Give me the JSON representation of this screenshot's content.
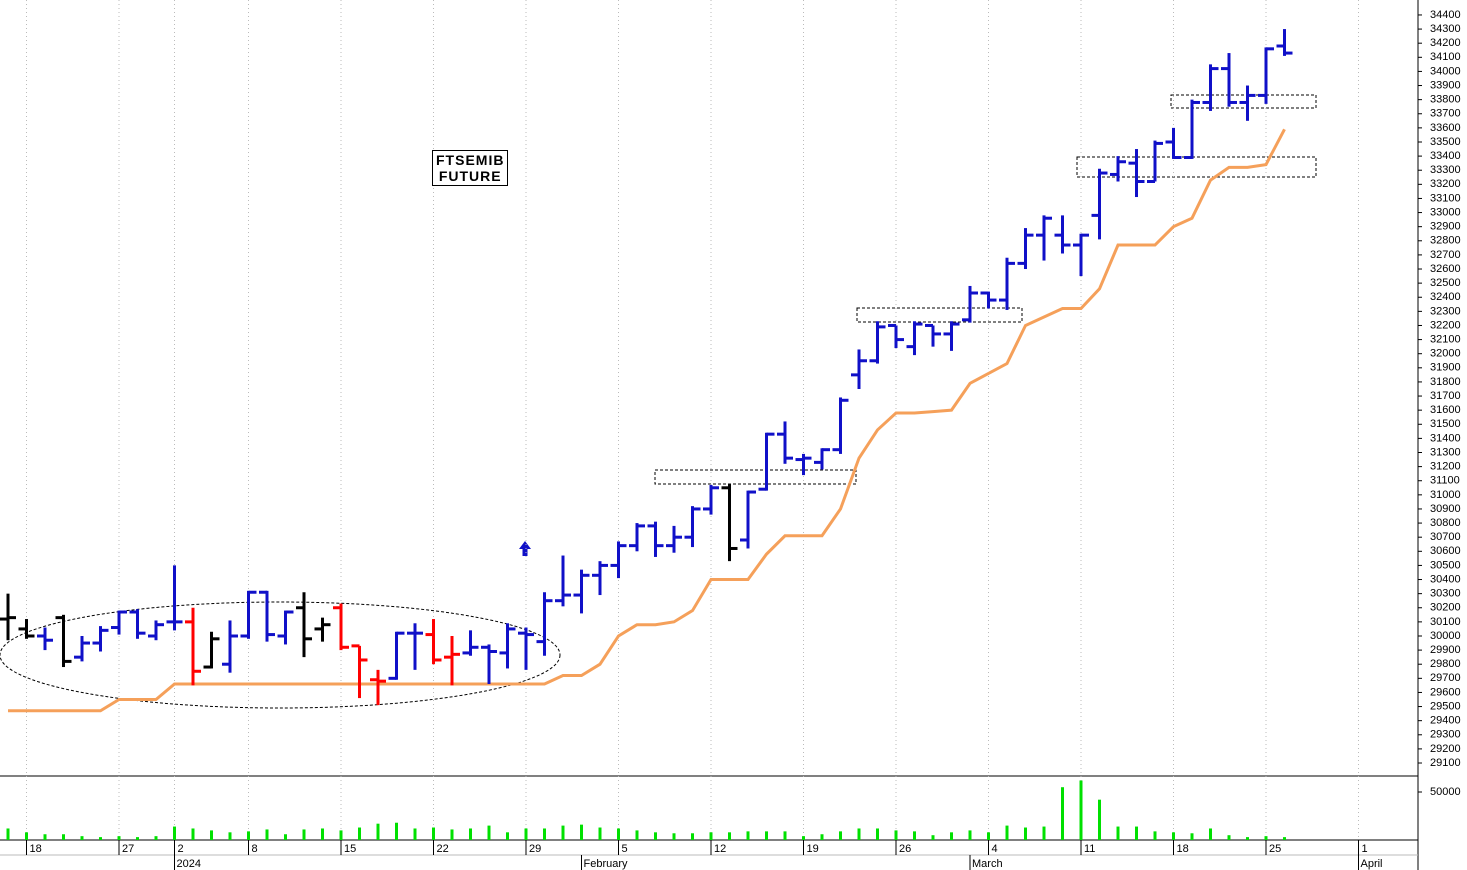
{
  "chart_data": {
    "type": "ohlc",
    "title": "FTSEMIB FUTURE",
    "categories": [
      null,
      "18",
      null,
      null,
      null,
      null,
      "27",
      null,
      null,
      "2",
      null,
      null,
      null,
      "8",
      null,
      null,
      null,
      null,
      "15",
      null,
      null,
      null,
      null,
      "22",
      null,
      null,
      null,
      null,
      "29",
      null,
      null,
      null,
      null,
      "5",
      null,
      null,
      null,
      null,
      "12",
      null,
      null,
      null,
      null,
      "19",
      null,
      null,
      null,
      null,
      "26",
      null,
      null,
      null,
      null,
      "4",
      null,
      null,
      null,
      null,
      "11",
      null,
      null,
      null,
      null,
      "18",
      null,
      null,
      null,
      null,
      "25",
      null,
      null,
      null,
      null,
      "1"
    ],
    "periods": [
      null,
      null,
      null,
      null,
      null,
      null,
      null,
      null,
      null,
      "2024",
      null,
      null,
      null,
      null,
      null,
      null,
      null,
      null,
      null,
      null,
      null,
      null,
      null,
      null,
      null,
      null,
      null,
      null,
      null,
      null,
      null,
      "February",
      null,
      null,
      null,
      null,
      null,
      null,
      null,
      null,
      null,
      null,
      null,
      null,
      null,
      null,
      null,
      null,
      null,
      null,
      null,
      null,
      "March",
      null,
      null,
      null,
      null,
      null,
      null,
      null,
      null,
      null,
      null,
      null,
      null,
      null,
      null,
      null,
      null,
      null,
      null,
      null,
      null,
      "April"
    ],
    "open": [
      30120,
      30050,
      30000,
      30130,
      29850,
      29950,
      30060,
      30170,
      30000,
      30100,
      30100,
      29780,
      29800,
      30000,
      30310,
      30000,
      30200,
      30050,
      30200,
      29930,
      29690,
      29700,
      30020,
      30010,
      29850,
      29880,
      29920,
      29880,
      30020,
      29960,
      30250,
      30290,
      30430,
      30500,
      30640,
      30780,
      30640,
      30700,
      30900,
      31050,
      30680,
      31040,
      31430,
      31250,
      31230,
      31320,
      31850,
      31950,
      32200,
      32050,
      32200,
      32140,
      32240,
      32430,
      32380,
      32640,
      32840,
      32840,
      32770,
      32980,
      33270,
      33350,
      33220,
      33500,
      33390,
      33780,
      34020,
      33780,
      33830,
      34180,
      null,
      null,
      null,
      null
    ],
    "high": [
      30300,
      30120,
      30060,
      30150,
      30000,
      30070,
      30180,
      30190,
      30110,
      30500,
      30200,
      30030,
      30110,
      30320,
      30320,
      30180,
      30310,
      30130,
      30230,
      29930,
      29760,
      30030,
      30090,
      30120,
      30000,
      30040,
      29940,
      30090,
      30060,
      30310,
      30570,
      30470,
      30530,
      30670,
      30800,
      30810,
      30780,
      30920,
      31070,
      31080,
      31030,
      31440,
      31520,
      31290,
      31330,
      31690,
      32030,
      32230,
      32200,
      32230,
      32200,
      32230,
      32480,
      32440,
      32680,
      32890,
      32980,
      32980,
      32850,
      33310,
      33400,
      33450,
      33510,
      33600,
      33800,
      34050,
      34130,
      33900,
      34170,
      34300,
      null,
      null,
      null,
      null
    ],
    "low": [
      29970,
      29980,
      29900,
      29780,
      29820,
      29890,
      30010,
      29980,
      29970,
      30040,
      29650,
      29770,
      29740,
      29980,
      29960,
      29940,
      29850,
      29960,
      29900,
      29560,
      29510,
      29690,
      29760,
      29800,
      29650,
      29860,
      29660,
      29770,
      29760,
      29860,
      30210,
      30160,
      30290,
      30410,
      30600,
      30560,
      30590,
      30630,
      30860,
      30530,
      30620,
      31030,
      31220,
      31140,
      31180,
      31290,
      31750,
      31930,
      32040,
      31990,
      32050,
      32020,
      32220,
      32320,
      32310,
      32600,
      32660,
      32710,
      32550,
      32810,
      33220,
      33110,
      33220,
      33380,
      33380,
      33720,
      33750,
      33650,
      33770,
      34110,
      null,
      null,
      null,
      null
    ],
    "close": [
      30130,
      30000,
      29970,
      29820,
      29950,
      30040,
      30170,
      30020,
      30080,
      30100,
      29750,
      29980,
      30000,
      30310,
      30010,
      30170,
      29980,
      30080,
      29920,
      29830,
      29680,
      30020,
      30020,
      29830,
      29870,
      29920,
      29890,
      30050,
      30010,
      30250,
      30290,
      30430,
      30500,
      30640,
      30780,
      30640,
      30700,
      30900,
      31050,
      30620,
      31020,
      31430,
      31260,
      31260,
      31320,
      31670,
      31950,
      32190,
      32100,
      32210,
      32140,
      32210,
      32430,
      32380,
      32640,
      32840,
      32960,
      32770,
      32840,
      33280,
      33360,
      33220,
      33490,
      33390,
      33780,
      34020,
      33780,
      33830,
      34160,
      34130,
      null,
      null,
      null,
      null
    ],
    "bar_colors": [
      "#000000",
      "#000000",
      "#1010c8",
      "#000000",
      "#1010c8",
      "#1010c8",
      "#1010c8",
      "#1010c8",
      "#1010c8",
      "#1010c8",
      "#ff0000",
      "#000000",
      "#1010c8",
      "#1010c8",
      "#1010c8",
      "#1010c8",
      "#000000",
      "#000000",
      "#ff0000",
      "#ff0000",
      "#ff0000",
      "#1010c8",
      "#1010c8",
      "#ff0000",
      "#ff0000",
      "#1010c8",
      "#1010c8",
      "#1010c8",
      "#1010c8",
      "#1010c8",
      "#1010c8",
      "#1010c8",
      "#1010c8",
      "#1010c8",
      "#1010c8",
      "#1010c8",
      "#1010c8",
      "#1010c8",
      "#1010c8",
      "#000000",
      "#1010c8",
      "#1010c8",
      "#1010c8",
      "#1010c8",
      "#1010c8",
      "#1010c8",
      "#1010c8",
      "#1010c8",
      "#1010c8",
      "#1010c8",
      "#1010c8",
      "#1010c8",
      "#1010c8",
      "#1010c8",
      "#1010c8",
      "#1010c8",
      "#1010c8",
      "#1010c8",
      "#1010c8",
      "#1010c8",
      "#1010c8",
      "#1010c8",
      "#1010c8",
      "#1010c8",
      "#1010c8",
      "#1010c8",
      "#1010c8",
      "#1010c8",
      "#1010c8",
      "#1010c8",
      null,
      null,
      null,
      null
    ],
    "ylim": [
      29008,
      34506
    ],
    "yticks": [
      29100,
      29200,
      29300,
      29400,
      29500,
      29600,
      29700,
      29800,
      29900,
      30000,
      30100,
      30200,
      30300,
      30400,
      30500,
      30600,
      30700,
      30800,
      30900,
      31000,
      31100,
      31200,
      31300,
      31400,
      31500,
      31600,
      31700,
      31800,
      31900,
      32000,
      32100,
      32200,
      32300,
      32400,
      32500,
      32600,
      32700,
      32800,
      32900,
      33000,
      33100,
      33200,
      33300,
      33400,
      33500,
      33600,
      33700,
      33800,
      33900,
      34000,
      34100,
      34200,
      34300,
      34400
    ],
    "stop_line": {
      "color": "#f5a05a",
      "values": [
        29470,
        29470,
        29470,
        29470,
        29470,
        29470,
        29550,
        29550,
        29550,
        29660,
        29660,
        29660,
        29660,
        29660,
        29660,
        29660,
        29660,
        29660,
        29660,
        29660,
        29660,
        29660,
        29660,
        29660,
        29660,
        29660,
        29660,
        29660,
        29660,
        29660,
        29720,
        29720,
        29800,
        30000,
        30080,
        30080,
        30100,
        30180,
        30400,
        30400,
        30400,
        30580,
        30710,
        30710,
        30710,
        30900,
        31260,
        31460,
        31580,
        31580,
        31590,
        31600,
        31790,
        31860,
        31930,
        32200,
        32260,
        32320,
        32320,
        32460,
        32770,
        32770,
        32770,
        32900,
        32960,
        33230,
        33320,
        33320,
        33340,
        33590,
        null,
        null,
        null,
        null
      ]
    },
    "volume": {
      "type": "bar",
      "color": "#00e000",
      "ylim": [
        0,
        66667
      ],
      "yticks": [
        50000
      ],
      "values": [
        12000,
        8000,
        6000,
        6000,
        4000,
        3000,
        4000,
        3000,
        4000,
        14000,
        12000,
        10000,
        8000,
        9000,
        11000,
        6000,
        11000,
        12000,
        10000,
        13000,
        17000,
        18000,
        12000,
        13000,
        11000,
        12000,
        15000,
        8000,
        12000,
        12000,
        15000,
        16000,
        13000,
        12000,
        10000,
        8000,
        7000,
        7000,
        8000,
        8000,
        9000,
        9000,
        9000,
        4000,
        6000,
        9000,
        12000,
        12000,
        10000,
        9000,
        5000,
        8000,
        10000,
        8000,
        15000,
        13000,
        14000,
        55000,
        62000,
        42000,
        14000,
        14000,
        9000,
        8000,
        7000,
        12000,
        5000,
        3000,
        4000,
        3000,
        null,
        null,
        null,
        null
      ]
    }
  }
}
